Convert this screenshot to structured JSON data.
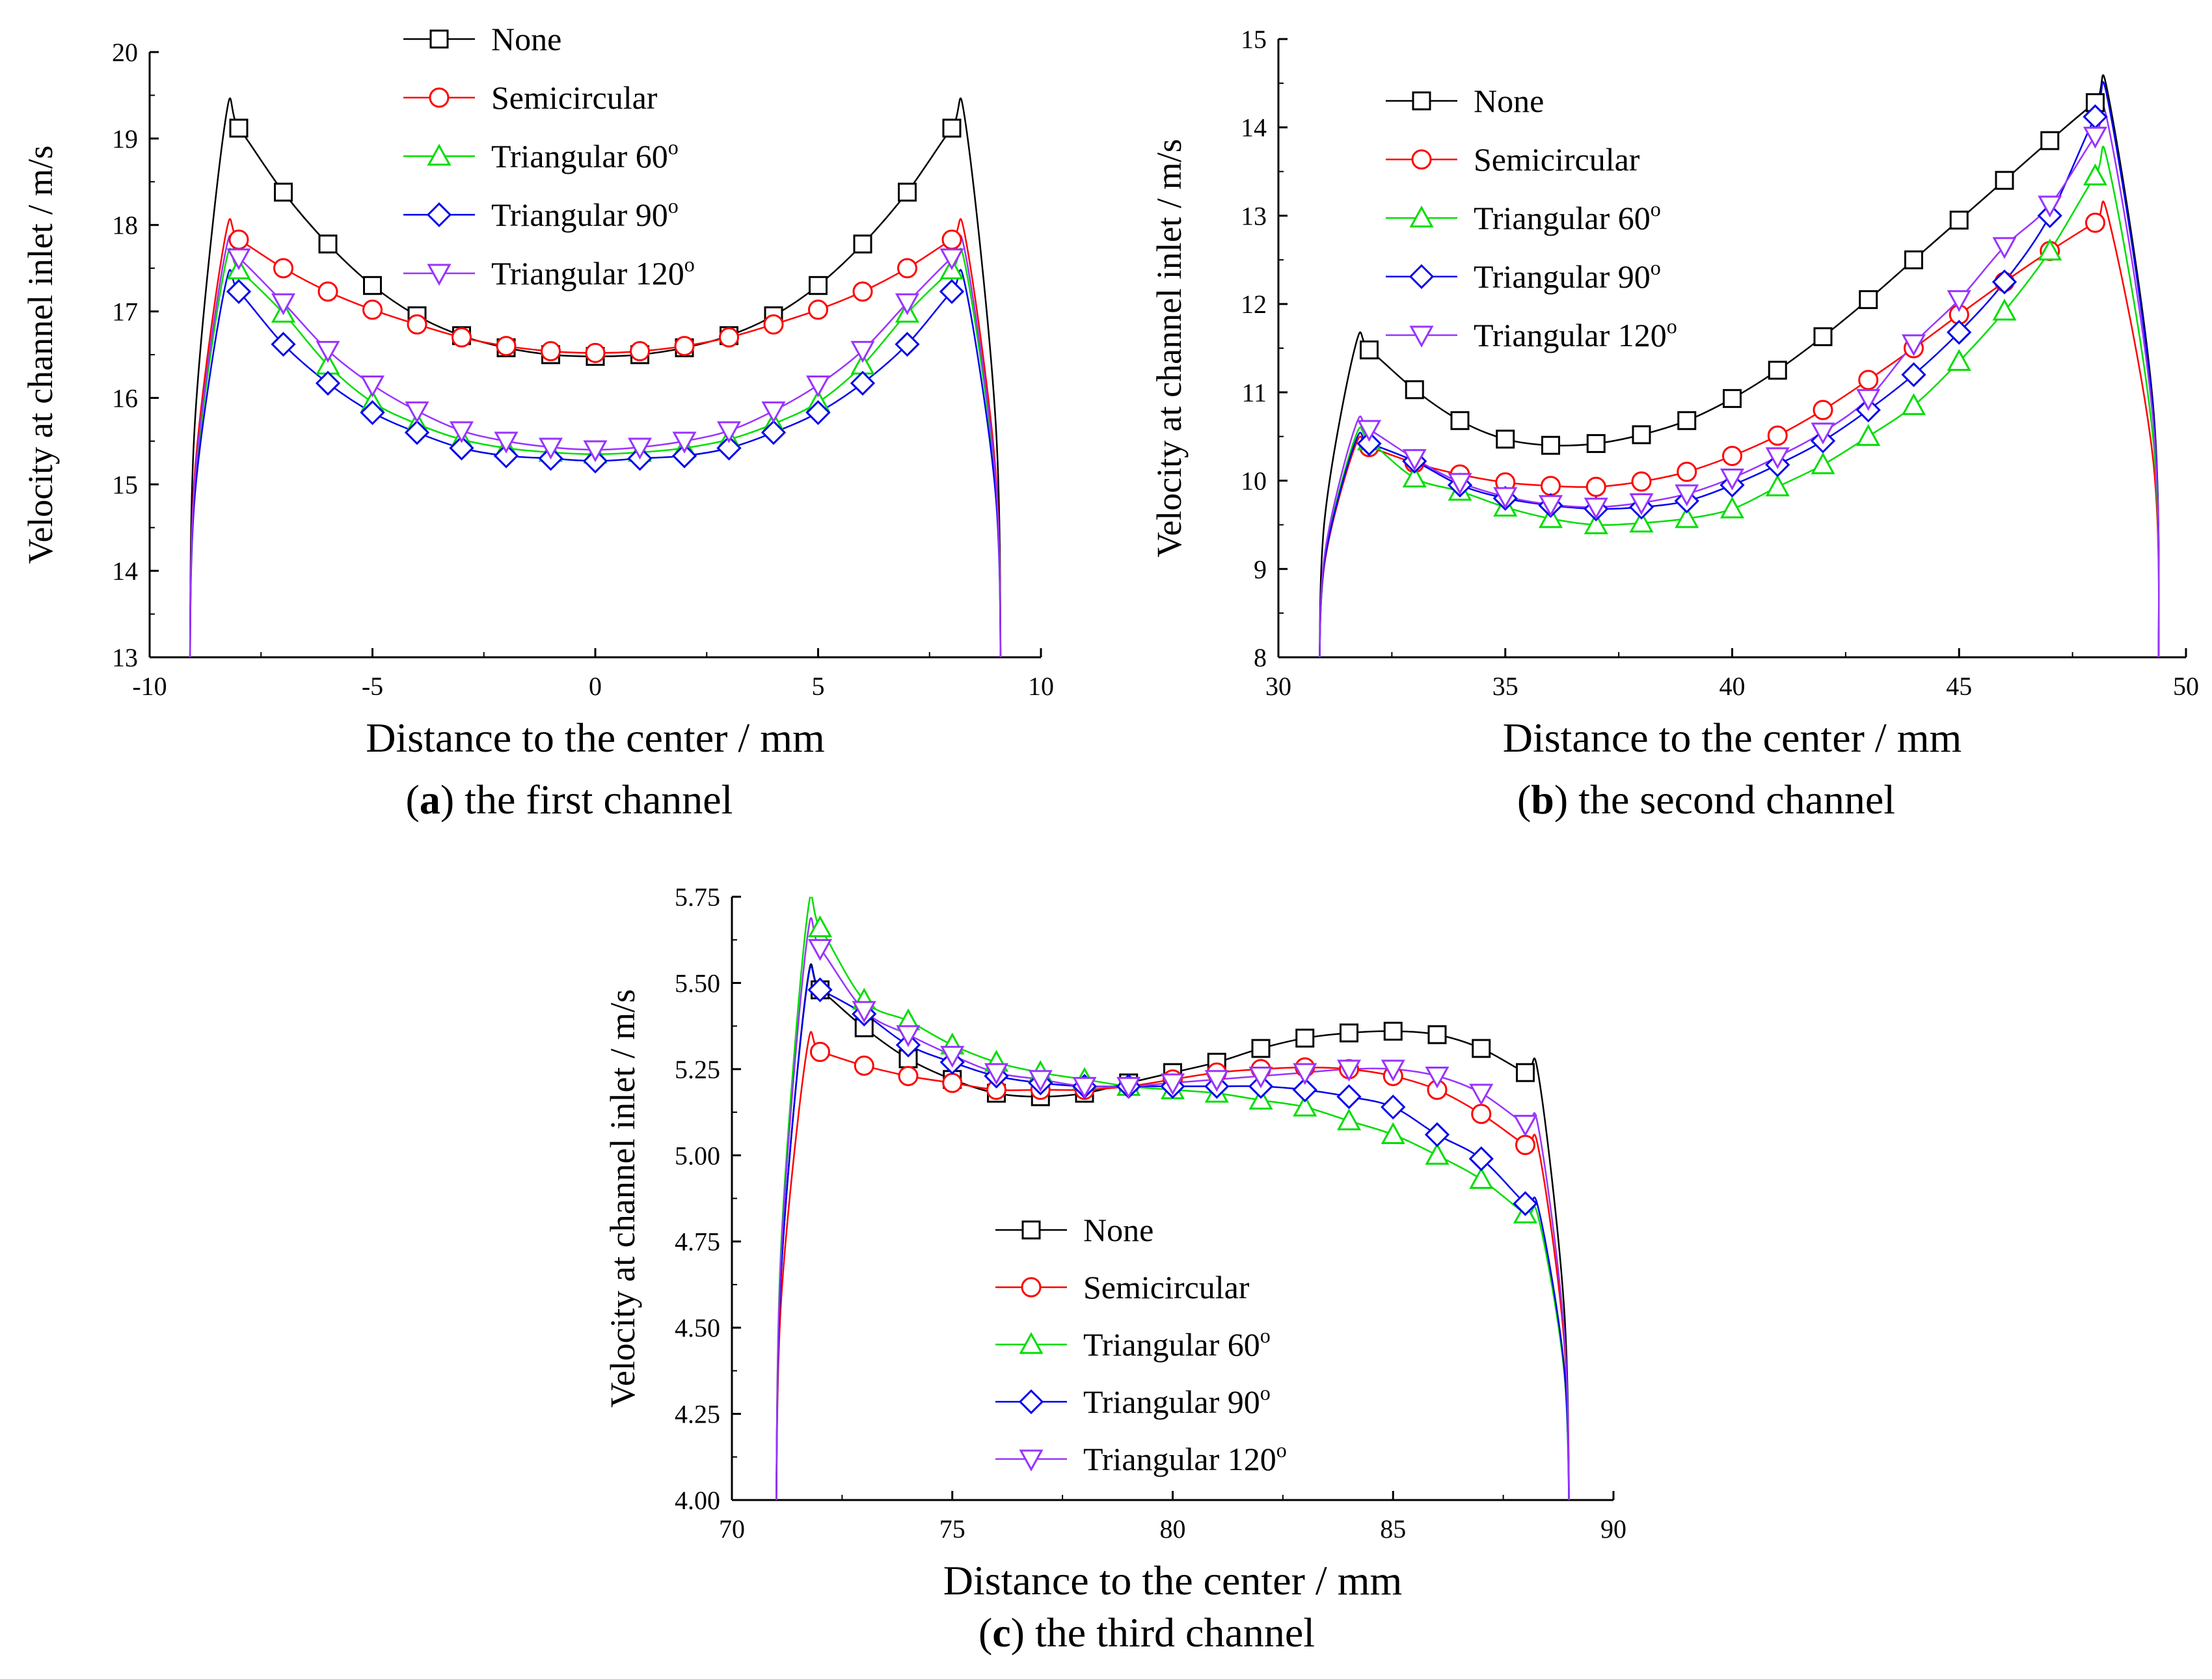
{
  "colors": {
    "None": "#000000",
    "Semicircular": "#ff0000",
    "Triangular 60": "#00dd00",
    "Triangular 90": "#0000ee",
    "Triangular 120": "#9933ff"
  },
  "chart_data": [
    {
      "id": "a",
      "type": "line",
      "caption_letter": "a",
      "caption_text": " the first channel",
      "xlabel": "Distance to the center / mm",
      "ylabel": "Velocity at channel inlet / m/s",
      "xlim": [
        -10,
        10
      ],
      "ylim": [
        13,
        20
      ],
      "xticks": [
        -10,
        -5,
        0,
        5,
        10
      ],
      "yticks": [
        13,
        14,
        15,
        16,
        17,
        18,
        19,
        20
      ],
      "ytick_labels": [
        "13",
        "14",
        "15",
        "16",
        "17",
        "18",
        "19",
        "20"
      ],
      "legend_position": "top-left",
      "x": [
        -8,
        -7,
        -6,
        -5,
        -4,
        -3,
        -2,
        -1,
        0,
        1,
        2,
        3,
        4,
        5,
        6,
        7,
        8
      ],
      "wall": {
        "left": -9.1,
        "right": 9.1,
        "bottom": 13
      },
      "series": [
        {
          "name": "None",
          "marker": "square",
          "values": [
            19.12,
            18.38,
            17.78,
            17.3,
            16.95,
            16.72,
            16.58,
            16.5,
            16.48,
            16.5,
            16.58,
            16.72,
            16.95,
            17.3,
            17.78,
            18.38,
            19.12
          ]
        },
        {
          "name": "Semicircular",
          "marker": "circle",
          "values": [
            17.83,
            17.5,
            17.23,
            17.02,
            16.85,
            16.7,
            16.6,
            16.54,
            16.52,
            16.54,
            16.6,
            16.7,
            16.85,
            17.02,
            17.23,
            17.5,
            17.83
          ]
        },
        {
          "name": "Triangular 60",
          "marker": "triangle-up",
          "values": [
            17.48,
            16.98,
            16.38,
            15.95,
            15.7,
            15.52,
            15.42,
            15.37,
            15.35,
            15.37,
            15.42,
            15.52,
            15.7,
            15.95,
            16.38,
            16.98,
            17.48
          ]
        },
        {
          "name": "Triangular 90",
          "marker": "diamond",
          "values": [
            17.23,
            16.62,
            16.17,
            15.83,
            15.6,
            15.42,
            15.33,
            15.3,
            15.27,
            15.3,
            15.33,
            15.42,
            15.6,
            15.83,
            16.17,
            16.62,
            17.23
          ]
        },
        {
          "name": "Triangular 120",
          "marker": "triangle-down",
          "values": [
            17.62,
            17.1,
            16.55,
            16.15,
            15.85,
            15.62,
            15.5,
            15.43,
            15.4,
            15.43,
            15.5,
            15.62,
            15.85,
            16.15,
            16.55,
            17.1,
            17.62
          ]
        }
      ]
    },
    {
      "id": "b",
      "type": "line",
      "caption_letter": "b",
      "caption_text": " the second channel",
      "xlabel": "Distance to the center / mm",
      "ylabel": "Velocity at channel inlet / m/s",
      "xlim": [
        30,
        50
      ],
      "ylim": [
        8,
        15
      ],
      "xticks": [
        30,
        35,
        40,
        45,
        50
      ],
      "yticks": [
        8,
        9,
        10,
        11,
        12,
        13,
        14,
        15
      ],
      "ytick_labels": [
        "8",
        "9",
        "10",
        "11",
        "12",
        "13",
        "14",
        "15"
      ],
      "legend_position": "top-left",
      "x": [
        32,
        33,
        34,
        35,
        36,
        37,
        38,
        39,
        40,
        41,
        42,
        43,
        44,
        45,
        46,
        47,
        48
      ],
      "wall": {
        "left": 30.9,
        "right": 49.4,
        "bottom": 8
      },
      "series": [
        {
          "name": "None",
          "marker": "square",
          "values": [
            11.48,
            11.03,
            10.68,
            10.47,
            10.4,
            10.42,
            10.52,
            10.68,
            10.93,
            11.25,
            11.63,
            12.05,
            12.5,
            12.95,
            13.4,
            13.85,
            14.28
          ]
        },
        {
          "name": "Semicircular",
          "marker": "circle",
          "values": [
            10.38,
            10.2,
            10.07,
            9.98,
            9.94,
            9.93,
            9.99,
            10.1,
            10.28,
            10.51,
            10.8,
            11.14,
            11.5,
            11.88,
            12.25,
            12.6,
            12.92
          ]
        },
        {
          "name": "Triangular 60",
          "marker": "triangle-up",
          "values": [
            10.45,
            10.03,
            9.88,
            9.7,
            9.57,
            9.5,
            9.52,
            9.57,
            9.68,
            9.93,
            10.18,
            10.5,
            10.85,
            11.35,
            11.92,
            12.6,
            13.45
          ]
        },
        {
          "name": "Triangular 90",
          "marker": "diamond",
          "values": [
            10.42,
            10.22,
            9.95,
            9.8,
            9.72,
            9.68,
            9.7,
            9.77,
            9.95,
            10.18,
            10.45,
            10.8,
            11.2,
            11.68,
            12.25,
            13.0,
            14.12
          ]
        },
        {
          "name": "Triangular 120",
          "marker": "triangle-down",
          "values": [
            10.58,
            10.25,
            9.98,
            9.82,
            9.73,
            9.7,
            9.75,
            9.85,
            10.03,
            10.27,
            10.55,
            10.93,
            11.55,
            12.05,
            12.65,
            13.12,
            13.9
          ]
        }
      ]
    },
    {
      "id": "c",
      "type": "line",
      "caption_letter": "c",
      "caption_text": " the third channel",
      "xlabel": "Distance to the center / mm",
      "ylabel": "Velocity at channel inlet / m/s",
      "xlim": [
        70,
        90
      ],
      "ylim": [
        4.0,
        5.75
      ],
      "xticks": [
        70,
        75,
        80,
        85,
        90
      ],
      "yticks": [
        4.0,
        4.25,
        4.5,
        4.75,
        5.0,
        5.25,
        5.5,
        5.75
      ],
      "ytick_labels": [
        "4.00",
        "4.25",
        "4.50",
        "4.75",
        "5.00",
        "5.25",
        "5.50",
        "5.75"
      ],
      "legend_position": "bottom-left",
      "x": [
        72,
        73,
        74,
        75,
        76,
        77,
        78,
        79,
        80,
        81,
        82,
        83,
        84,
        85,
        86,
        87,
        88
      ],
      "wall": {
        "left": 71.0,
        "right": 89.0,
        "bottom": 4.0
      },
      "series": [
        {
          "name": "None",
          "marker": "square",
          "values": [
            5.48,
            5.37,
            5.28,
            5.22,
            5.18,
            5.17,
            5.18,
            5.21,
            5.24,
            5.27,
            5.31,
            5.34,
            5.355,
            5.36,
            5.35,
            5.31,
            5.24
          ]
        },
        {
          "name": "Semicircular",
          "marker": "circle",
          "values": [
            5.3,
            5.26,
            5.23,
            5.21,
            5.19,
            5.19,
            5.19,
            5.2,
            5.22,
            5.24,
            5.25,
            5.255,
            5.25,
            5.23,
            5.19,
            5.12,
            5.03
          ]
        },
        {
          "name": "Triangular 60",
          "marker": "triangle-up",
          "values": [
            5.66,
            5.45,
            5.39,
            5.32,
            5.27,
            5.24,
            5.22,
            5.2,
            5.19,
            5.18,
            5.16,
            5.14,
            5.1,
            5.06,
            5.0,
            4.93,
            4.83
          ]
        },
        {
          "name": "Triangular 90",
          "marker": "diamond",
          "values": [
            5.48,
            5.41,
            5.32,
            5.27,
            5.23,
            5.21,
            5.2,
            5.2,
            5.2,
            5.2,
            5.2,
            5.19,
            5.17,
            5.14,
            5.06,
            4.99,
            4.86
          ]
        },
        {
          "name": "Triangular 120",
          "marker": "triangle-down",
          "values": [
            5.6,
            5.42,
            5.35,
            5.29,
            5.24,
            5.22,
            5.2,
            5.2,
            5.21,
            5.22,
            5.23,
            5.24,
            5.25,
            5.25,
            5.23,
            5.18,
            5.09
          ]
        }
      ]
    }
  ],
  "legend_labels": [
    {
      "base": "None",
      "sup": ""
    },
    {
      "base": "Semicircular",
      "sup": ""
    },
    {
      "base": "Triangular 60",
      "sup": "o"
    },
    {
      "base": "Triangular 90",
      "sup": "o"
    },
    {
      "base": "Triangular 120",
      "sup": "o"
    }
  ]
}
